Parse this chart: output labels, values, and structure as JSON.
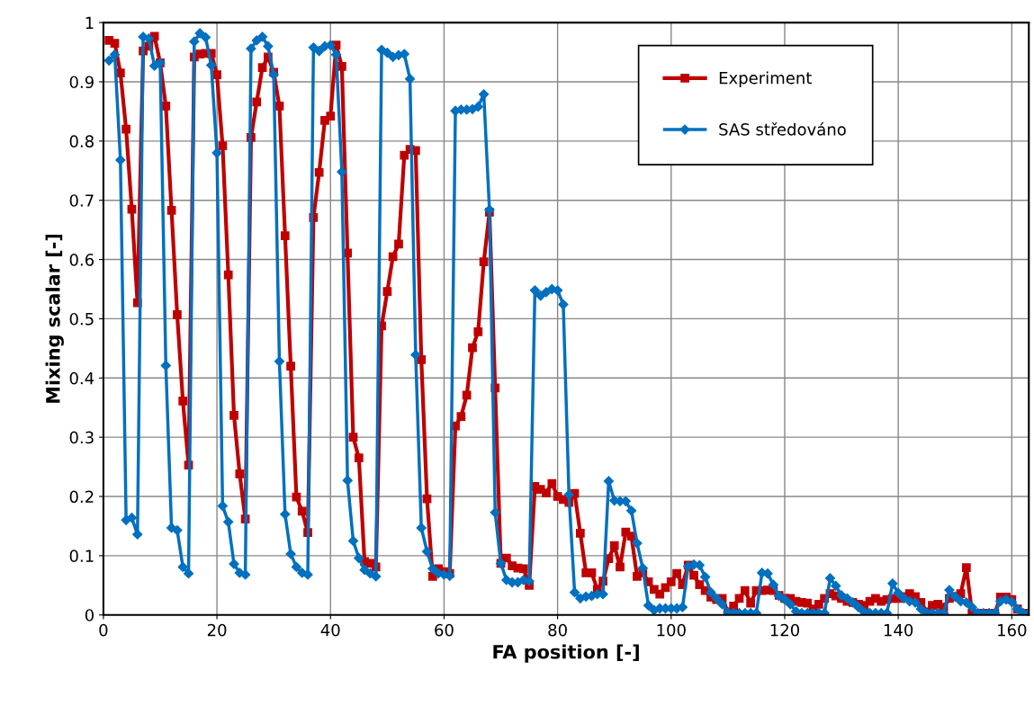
{
  "chart_data": {
    "type": "line",
    "xlabel": "FA position [-]",
    "ylabel": "Mixing scalar [-]",
    "x": [
      1,
      2,
      3,
      4,
      5,
      6,
      7,
      8,
      9,
      10,
      11,
      12,
      13,
      14,
      15,
      16,
      17,
      18,
      19,
      20,
      21,
      22,
      23,
      24,
      25,
      26,
      27,
      28,
      29,
      30,
      31,
      32,
      33,
      34,
      35,
      36,
      37,
      38,
      39,
      40,
      41,
      42,
      43,
      44,
      45,
      46,
      47,
      48,
      49,
      50,
      51,
      52,
      53,
      54,
      55,
      56,
      57,
      58,
      59,
      60,
      61,
      62,
      63,
      64,
      65,
      66,
      67,
      68,
      69,
      70,
      71,
      72,
      73,
      74,
      75,
      76,
      77,
      78,
      79,
      80,
      81,
      82,
      83,
      84,
      85,
      86,
      87,
      88,
      89,
      90,
      91,
      92,
      93,
      94,
      95,
      96,
      97,
      98,
      99,
      100,
      101,
      102,
      103,
      104,
      105,
      106,
      107,
      108,
      109,
      110,
      111,
      112,
      113,
      114,
      115,
      116,
      117,
      118,
      119,
      120,
      121,
      122,
      123,
      124,
      125,
      126,
      127,
      128,
      129,
      130,
      131,
      132,
      133,
      134,
      135,
      136,
      137,
      138,
      139,
      140,
      141,
      142,
      143,
      144,
      145,
      146,
      147,
      148,
      149,
      150,
      151,
      152,
      153,
      154,
      155,
      156,
      157,
      158,
      159,
      160,
      161,
      162,
      163
    ],
    "series": [
      {
        "name": "Experiment",
        "color": "#c00000",
        "values": [
          0.97,
          0.965,
          0.915,
          0.82,
          0.685,
          0.527,
          0.952,
          0.96,
          0.977,
          0.932,
          0.859,
          0.683,
          0.507,
          0.361,
          0.253,
          0.942,
          0.947,
          0.948,
          0.948,
          0.912,
          0.792,
          0.574,
          0.337,
          0.238,
          0.162,
          0.806,
          0.866,
          0.924,
          0.942,
          0.916,
          0.859,
          0.64,
          0.42,
          0.199,
          0.175,
          0.139,
          0.671,
          0.747,
          0.835,
          0.842,
          0.962,
          0.926,
          0.611,
          0.3,
          0.265,
          0.09,
          0.087,
          0.081,
          0.488,
          0.546,
          0.605,
          0.626,
          0.776,
          0.786,
          0.784,
          0.431,
          0.196,
          0.065,
          0.078,
          0.073,
          0.07,
          0.319,
          0.335,
          0.371,
          0.451,
          0.478,
          0.596,
          0.68,
          0.383,
          0.087,
          0.096,
          0.083,
          0.079,
          0.078,
          0.05,
          0.217,
          0.212,
          0.206,
          0.222,
          0.2,
          0.195,
          0.19,
          0.205,
          0.138,
          0.071,
          0.071,
          0.043,
          0.057,
          0.095,
          0.117,
          0.081,
          0.14,
          0.133,
          0.065,
          0.071,
          0.056,
          0.043,
          0.035,
          0.046,
          0.056,
          0.07,
          0.051,
          0.084,
          0.067,
          0.051,
          0.041,
          0.03,
          0.026,
          0.028,
          0.005,
          0.015,
          0.028,
          0.041,
          0.02,
          0.041,
          0.041,
          0.042,
          0.041,
          0.033,
          0.028,
          0.028,
          0.023,
          0.021,
          0.02,
          0.01,
          0.018,
          0.028,
          0.036,
          0.032,
          0.028,
          0.023,
          0.021,
          0.018,
          0.016,
          0.023,
          0.028,
          0.023,
          0.026,
          0.028,
          0.028,
          0.031,
          0.036,
          0.031,
          0.021,
          0.005,
          0.016,
          0.018,
          0.013,
          0.028,
          0.031,
          0.036,
          0.08,
          0.003,
          0.003,
          0.003,
          0.003,
          0.003,
          0.03,
          0.03,
          0.026,
          0.01,
          0.003,
          0.003
        ]
      },
      {
        "name": "SAS středováno",
        "color": "#0070c0",
        "values": [
          0.936,
          0.946,
          0.768,
          0.16,
          0.164,
          0.136,
          0.976,
          0.973,
          0.927,
          0.932,
          0.421,
          0.147,
          0.143,
          0.081,
          0.07,
          0.968,
          0.982,
          0.975,
          0.928,
          0.78,
          0.184,
          0.157,
          0.086,
          0.071,
          0.068,
          0.956,
          0.97,
          0.976,
          0.96,
          0.912,
          0.428,
          0.17,
          0.103,
          0.081,
          0.071,
          0.068,
          0.958,
          0.952,
          0.96,
          0.962,
          0.946,
          0.748,
          0.227,
          0.125,
          0.096,
          0.076,
          0.07,
          0.065,
          0.954,
          0.949,
          0.942,
          0.945,
          0.947,
          0.905,
          0.439,
          0.147,
          0.107,
          0.078,
          0.07,
          0.068,
          0.066,
          0.851,
          0.853,
          0.853,
          0.854,
          0.858,
          0.879,
          0.684,
          0.173,
          0.087,
          0.059,
          0.055,
          0.055,
          0.059,
          0.057,
          0.548,
          0.539,
          0.545,
          0.55,
          0.548,
          0.524,
          0.203,
          0.038,
          0.028,
          0.031,
          0.032,
          0.035,
          0.035,
          0.226,
          0.193,
          0.192,
          0.192,
          0.176,
          0.121,
          0.079,
          0.016,
          0.008,
          0.011,
          0.011,
          0.011,
          0.011,
          0.013,
          0.082,
          0.085,
          0.084,
          0.064,
          0.038,
          0.028,
          0.018,
          0.004,
          0.003,
          0.003,
          0.003,
          0.003,
          0.003,
          0.071,
          0.07,
          0.051,
          0.032,
          0.026,
          0.018,
          0.006,
          0.003,
          0.003,
          0.003,
          0.003,
          0.003,
          0.062,
          0.049,
          0.033,
          0.028,
          0.021,
          0.013,
          0.005,
          0.003,
          0.003,
          0.003,
          0.003,
          0.053,
          0.037,
          0.028,
          0.023,
          0.021,
          0.01,
          0.003,
          0.003,
          0.003,
          0.003,
          0.042,
          0.031,
          0.023,
          0.021,
          0.013,
          0.003,
          0.003,
          0.003,
          0.003,
          0.023,
          0.026,
          0.022,
          0.01,
          0.003,
          0.003
        ],
        "marker": "diamond"
      }
    ],
    "marker": "square",
    "line_style": "solid",
    "xlim": [
      0,
      163
    ],
    "xticks": [
      0,
      20,
      40,
      60,
      80,
      100,
      120,
      140,
      160
    ],
    "ylim": [
      0,
      1
    ],
    "yticks": [
      0,
      0.1,
      0.2,
      0.3,
      0.4,
      0.5,
      0.6,
      0.7,
      0.8,
      0.9,
      1
    ],
    "grid": true,
    "legend": "top right"
  }
}
